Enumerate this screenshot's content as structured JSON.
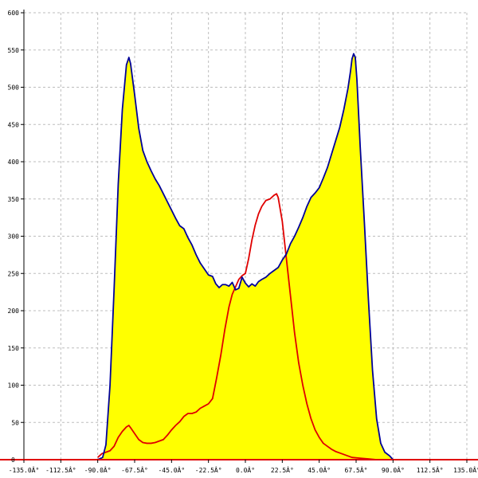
{
  "chart_data": {
    "type": "area",
    "title": "",
    "xlabel": "",
    "ylabel": "",
    "xlim": [
      -135,
      135
    ],
    "ylim": [
      0,
      600
    ],
    "grid": true,
    "x_ticks": [
      -135,
      -112.5,
      -90,
      -67.5,
      -45,
      -22.5,
      0,
      22.5,
      45,
      67.5,
      90,
      112.5,
      135
    ],
    "x_tick_labels": [
      "-135.0Â°",
      "-112.5Â°",
      "-90.0Â°",
      "-67.5Â°",
      "-45.0Â°",
      "-22.5Â°",
      "0.0Â°",
      "22.5Â°",
      "45.0Â°",
      "67.5Â°",
      "90.0Â°",
      "112.5Â°",
      "135.0Â°"
    ],
    "y_ticks": [
      50,
      100,
      150,
      200,
      250,
      300,
      350,
      400,
      450,
      500,
      550,
      600
    ],
    "y_tick_labels": [
      "50",
      "100",
      "150",
      "200",
      "250",
      "300",
      "350",
      "400",
      "450",
      "500",
      "550",
      "600"
    ],
    "colors": {
      "fill": "#ffff00",
      "series_1": "#000099",
      "series_2": "#e00000",
      "baseline": "#e00000",
      "grid": "#bdbdbd"
    },
    "series": [
      {
        "values": [
          [
            -90,
            0
          ],
          [
            -87,
            3
          ],
          [
            -85,
            20
          ],
          [
            -82.5,
            100
          ],
          [
            -80,
            230
          ],
          [
            -77.5,
            370
          ],
          [
            -75,
            470
          ],
          [
            -72.5,
            530
          ],
          [
            -71,
            540
          ],
          [
            -70,
            532
          ],
          [
            -67.5,
            490
          ],
          [
            -65,
            445
          ],
          [
            -62.5,
            415
          ],
          [
            -60,
            400
          ],
          [
            -57.5,
            388
          ],
          [
            -55,
            377
          ],
          [
            -52.5,
            368
          ],
          [
            -50,
            357
          ],
          [
            -47.5,
            346
          ],
          [
            -45,
            335
          ],
          [
            -42.5,
            324
          ],
          [
            -40,
            314
          ],
          [
            -37.5,
            310
          ],
          [
            -35,
            298
          ],
          [
            -32.5,
            288
          ],
          [
            -30,
            275
          ],
          [
            -27.5,
            264
          ],
          [
            -25,
            256
          ],
          [
            -22.5,
            248
          ],
          [
            -20,
            246
          ],
          [
            -18,
            236
          ],
          [
            -16,
            231
          ],
          [
            -14,
            235
          ],
          [
            -12,
            235
          ],
          [
            -10,
            233
          ],
          [
            -8,
            238
          ],
          [
            -6,
            228
          ],
          [
            -4,
            230
          ],
          [
            -2,
            245
          ],
          [
            0,
            237
          ],
          [
            2,
            232
          ],
          [
            4,
            236
          ],
          [
            6,
            233
          ],
          [
            8,
            239
          ],
          [
            10,
            242
          ],
          [
            12.5,
            245
          ],
          [
            15,
            250
          ],
          [
            17.5,
            254
          ],
          [
            20,
            258
          ],
          [
            22.5,
            268
          ],
          [
            25,
            276
          ],
          [
            27.5,
            290
          ],
          [
            30,
            300
          ],
          [
            32.5,
            312
          ],
          [
            35,
            325
          ],
          [
            37.5,
            340
          ],
          [
            40,
            352
          ],
          [
            42.5,
            358
          ],
          [
            45,
            365
          ],
          [
            47.5,
            378
          ],
          [
            50,
            392
          ],
          [
            52.5,
            410
          ],
          [
            55,
            428
          ],
          [
            57.5,
            446
          ],
          [
            60,
            470
          ],
          [
            62.5,
            498
          ],
          [
            64,
            520
          ],
          [
            65,
            538
          ],
          [
            66,
            545
          ],
          [
            67,
            540
          ],
          [
            68,
            510
          ],
          [
            69,
            465
          ],
          [
            70,
            420
          ],
          [
            72.5,
            320
          ],
          [
            75,
            215
          ],
          [
            77.5,
            120
          ],
          [
            80,
            55
          ],
          [
            82.5,
            22
          ],
          [
            85,
            10
          ],
          [
            88,
            5
          ],
          [
            90,
            0
          ]
        ]
      },
      {
        "values": [
          [
            -90,
            3
          ],
          [
            -87.5,
            8
          ],
          [
            -85,
            10
          ],
          [
            -82.5,
            12
          ],
          [
            -80,
            18
          ],
          [
            -77.5,
            30
          ],
          [
            -75,
            38
          ],
          [
            -72.5,
            44
          ],
          [
            -71,
            46
          ],
          [
            -70,
            43
          ],
          [
            -67.5,
            35
          ],
          [
            -65,
            27
          ],
          [
            -62.5,
            23
          ],
          [
            -60,
            22
          ],
          [
            -57.5,
            22
          ],
          [
            -55,
            23
          ],
          [
            -52.5,
            25
          ],
          [
            -50,
            27
          ],
          [
            -47.5,
            33
          ],
          [
            -45,
            40
          ],
          [
            -42.5,
            46
          ],
          [
            -40,
            51
          ],
          [
            -37.5,
            58
          ],
          [
            -35,
            62
          ],
          [
            -32.5,
            62
          ],
          [
            -30,
            64
          ],
          [
            -27.5,
            69
          ],
          [
            -25,
            72
          ],
          [
            -22.5,
            75
          ],
          [
            -20,
            82
          ],
          [
            -17.5,
            110
          ],
          [
            -15,
            140
          ],
          [
            -12.5,
            175
          ],
          [
            -10,
            205
          ],
          [
            -8,
            222
          ],
          [
            -6,
            232
          ],
          [
            -4,
            242
          ],
          [
            -2,
            247
          ],
          [
            0,
            250
          ],
          [
            2,
            270
          ],
          [
            4,
            295
          ],
          [
            6,
            315
          ],
          [
            8,
            330
          ],
          [
            10,
            340
          ],
          [
            12.5,
            348
          ],
          [
            15,
            350
          ],
          [
            17.5,
            355
          ],
          [
            19,
            357
          ],
          [
            20,
            352
          ],
          [
            22.5,
            320
          ],
          [
            25,
            270
          ],
          [
            27.5,
            220
          ],
          [
            30,
            170
          ],
          [
            32.5,
            130
          ],
          [
            35,
            100
          ],
          [
            37.5,
            75
          ],
          [
            40,
            55
          ],
          [
            42.5,
            40
          ],
          [
            45,
            30
          ],
          [
            47.5,
            22
          ],
          [
            50,
            18
          ],
          [
            52.5,
            14
          ],
          [
            55,
            11
          ],
          [
            57.5,
            9
          ],
          [
            60,
            7
          ],
          [
            62.5,
            5
          ],
          [
            65,
            3
          ],
          [
            70,
            2
          ],
          [
            75,
            1
          ],
          [
            80,
            0
          ],
          [
            90,
            0
          ]
        ]
      }
    ]
  }
}
